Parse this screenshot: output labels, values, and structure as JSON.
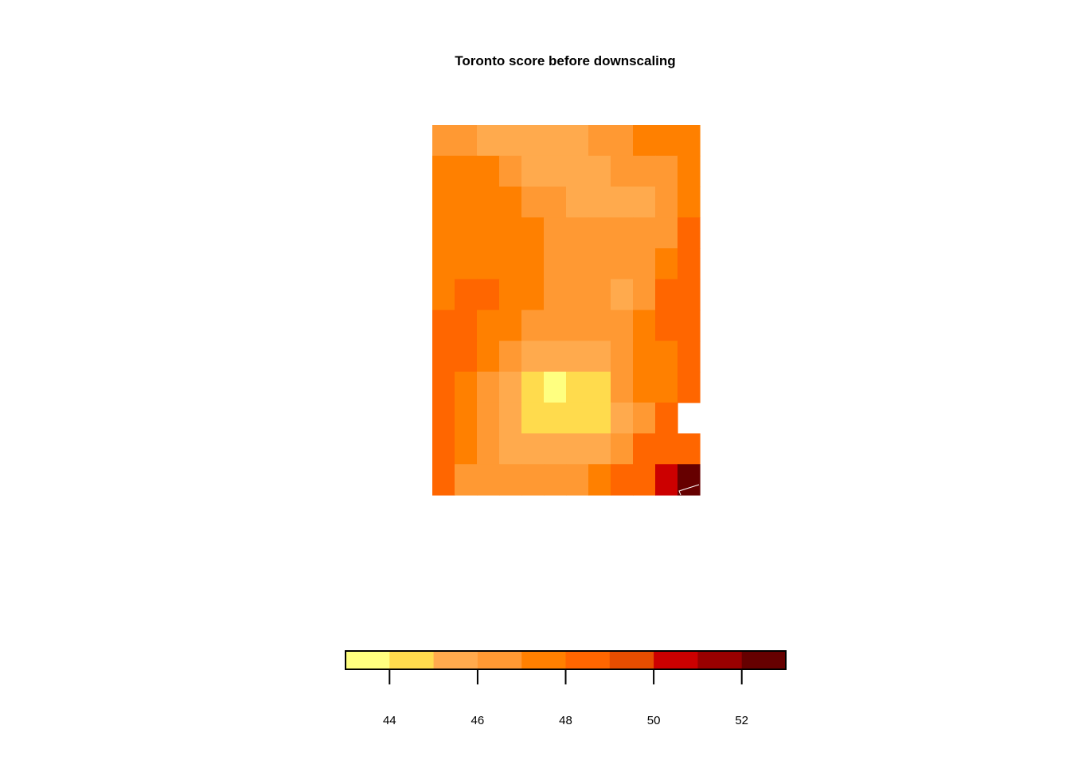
{
  "chart_data": {
    "type": "heatmap",
    "title": "Toronto score before downscaling",
    "xlabel": "",
    "ylabel": "",
    "grid": false,
    "legend": "bottom",
    "rows": 12,
    "cols": 12,
    "values": [
      [
        46.5,
        46.5,
        45.5,
        45.5,
        45.5,
        45.5,
        45.5,
        46.5,
        46.5,
        47.5,
        47.5,
        47.5
      ],
      [
        47.5,
        47.5,
        47.5,
        46.5,
        45.5,
        45.5,
        45.5,
        45.5,
        46.5,
        46.5,
        46.5,
        47.5
      ],
      [
        47.5,
        47.5,
        47.5,
        47.5,
        46.5,
        46.5,
        45.5,
        45.5,
        45.5,
        45.5,
        46.5,
        47.5
      ],
      [
        47.5,
        47.5,
        47.5,
        47.5,
        47.5,
        46.5,
        46.5,
        46.5,
        46.5,
        46.5,
        46.5,
        48.5
      ],
      [
        47.5,
        47.5,
        47.5,
        47.5,
        47.5,
        46.5,
        46.5,
        46.5,
        46.5,
        46.5,
        47.5,
        48.5
      ],
      [
        47.5,
        48.5,
        48.5,
        47.5,
        47.5,
        46.5,
        46.5,
        46.5,
        45.5,
        46.5,
        48.5,
        48.5
      ],
      [
        48.5,
        48.5,
        47.5,
        47.5,
        46.5,
        46.5,
        46.5,
        46.5,
        46.5,
        47.5,
        48.5,
        48.5
      ],
      [
        48.5,
        48.5,
        47.5,
        46.5,
        45.5,
        45.5,
        45.5,
        45.5,
        46.5,
        47.5,
        47.5,
        48.5
      ],
      [
        48.5,
        47.5,
        46.5,
        45.5,
        44.5,
        43.5,
        44.5,
        44.5,
        46.5,
        47.5,
        47.5,
        48.5
      ],
      [
        48.5,
        47.5,
        46.5,
        45.5,
        44.5,
        44.5,
        44.5,
        44.5,
        45.5,
        46.5,
        48.5,
        null
      ],
      [
        48.5,
        47.5,
        46.5,
        45.5,
        45.5,
        45.5,
        45.5,
        45.5,
        46.5,
        48.5,
        48.5,
        48.5
      ],
      [
        48.5,
        46.5,
        46.5,
        46.5,
        46.5,
        46.5,
        46.5,
        47.5,
        48.5,
        48.5,
        50.5,
        52.5
      ]
    ],
    "zlim": [
      43,
      53
    ],
    "breaks": [
      43,
      44,
      45,
      46,
      47,
      48,
      49,
      50,
      51,
      52,
      53
    ],
    "colors": [
      "#FFFF80",
      "#FFDB4D",
      "#FFAA4D",
      "#FF9933",
      "#FF8000",
      "#FF6600",
      "#E64D00",
      "#CC0000",
      "#990000",
      "#660000"
    ],
    "legend_ticks": [
      44,
      46,
      48,
      50,
      52
    ],
    "legend_tick_labels": [
      "44",
      "46",
      "48",
      "50",
      "52"
    ]
  }
}
